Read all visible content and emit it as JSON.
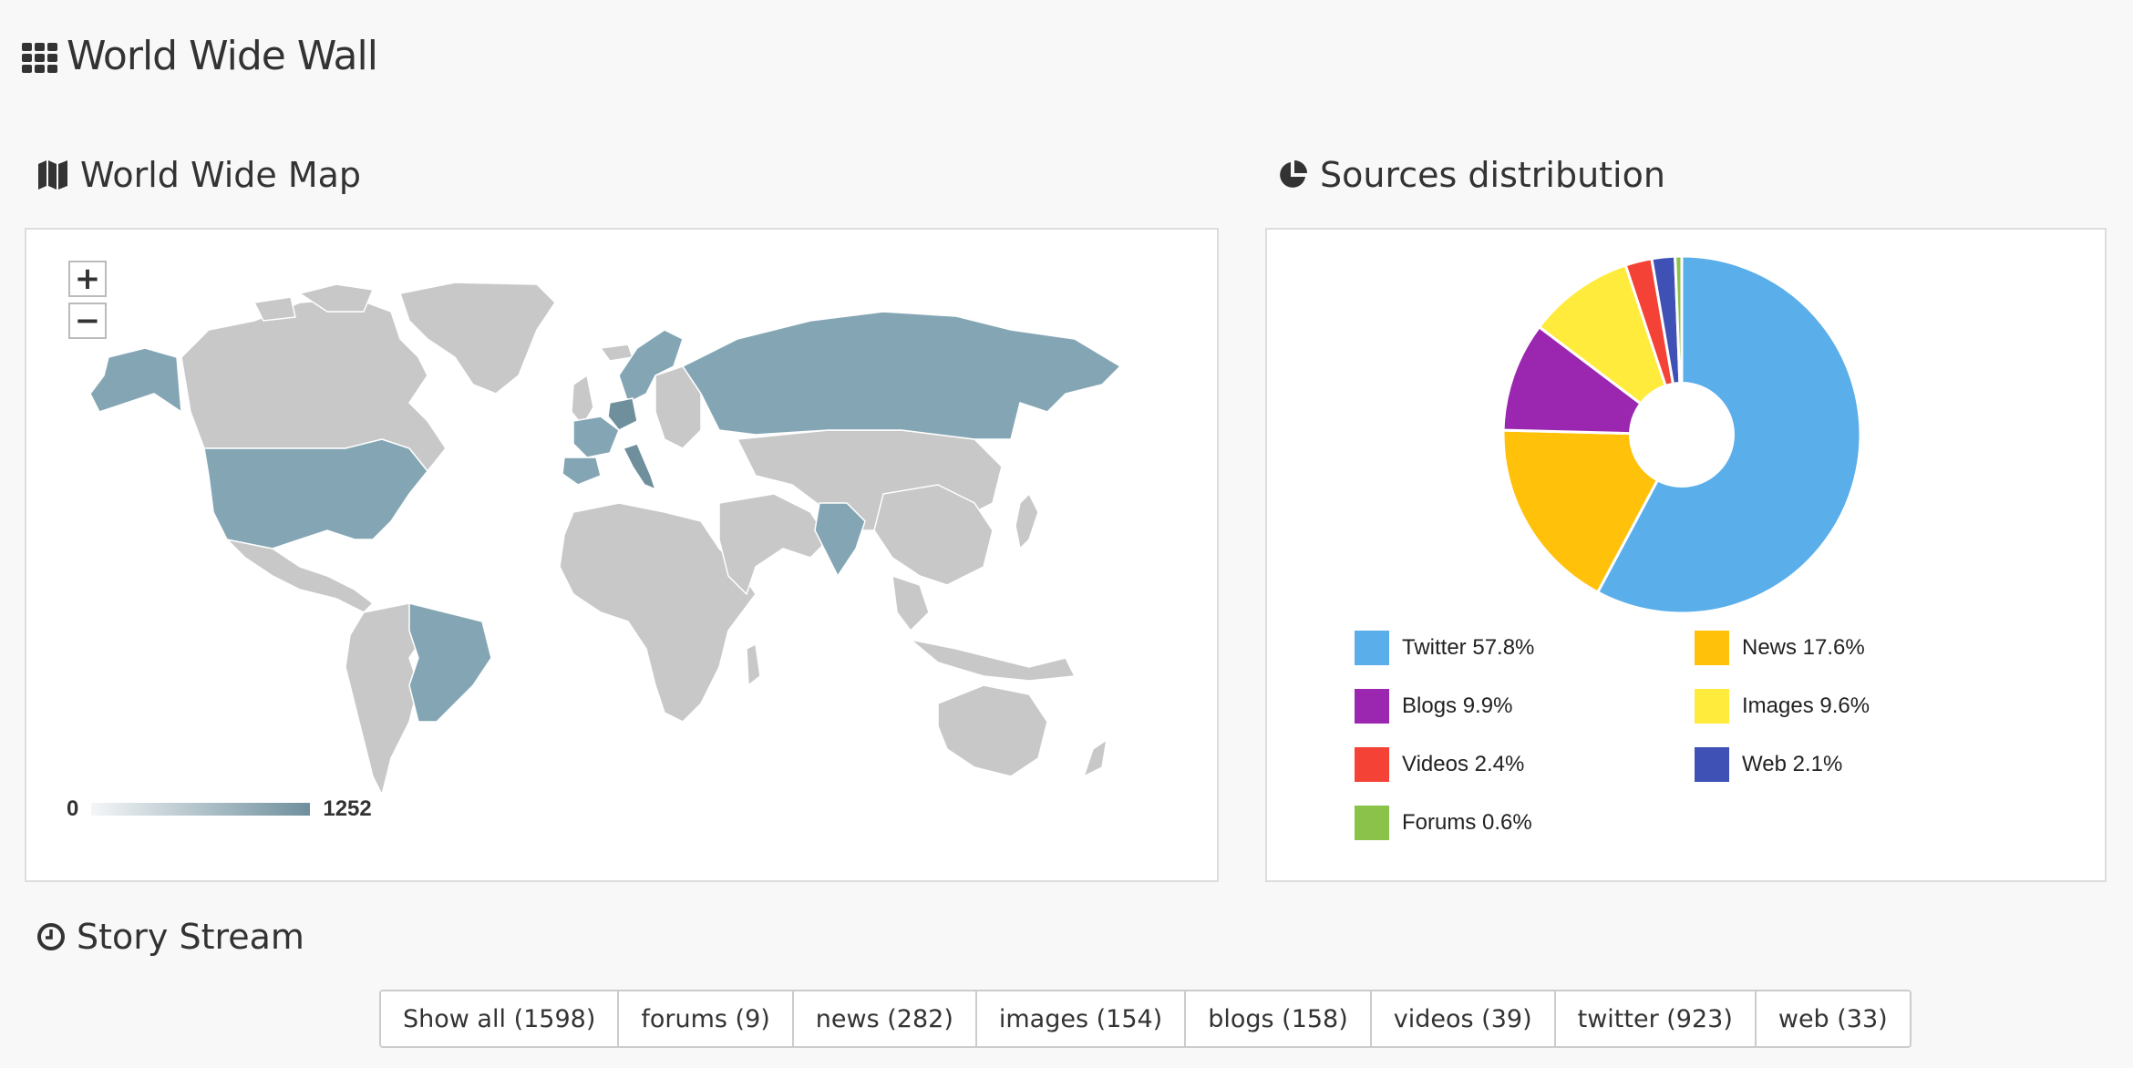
{
  "page": {
    "title": "World Wide Wall"
  },
  "map_section": {
    "heading": "World Wide Map",
    "zoom_in": "+",
    "zoom_out": "−",
    "scale_min": "0",
    "scale_max": "1252",
    "colors": {
      "land": "#c8c8c8",
      "highlight": "#84a6b4",
      "dark": "#6f8f9d"
    }
  },
  "sources_section": {
    "heading": "Sources distribution",
    "legend": [
      {
        "label": "Twitter 57.8%",
        "color": "#5aaeea"
      },
      {
        "label": "News 17.6%",
        "color": "#ffc10a"
      },
      {
        "label": "Blogs 9.9%",
        "color": "#9b27b0"
      },
      {
        "label": "Images 9.6%",
        "color": "#ffeb3b"
      },
      {
        "label": "Videos 2.4%",
        "color": "#f44336"
      },
      {
        "label": "Web 2.1%",
        "color": "#3f51b5"
      },
      {
        "label": "Forums 0.6%",
        "color": "#8bc34a"
      }
    ]
  },
  "chart_data": {
    "type": "pie",
    "categories": [
      "Twitter",
      "News",
      "Blogs",
      "Images",
      "Videos",
      "Web",
      "Forums"
    ],
    "values": [
      57.8,
      17.6,
      9.9,
      9.6,
      2.4,
      2.1,
      0.6
    ],
    "colors": [
      "#5aaeea",
      "#ffc10a",
      "#9b27b0",
      "#ffeb3b",
      "#f44336",
      "#3f51b5",
      "#8bc34a"
    ],
    "title": "Sources distribution",
    "legend": "bottom"
  },
  "story_stream": {
    "heading": "Story Stream",
    "filters": [
      "Show all (1598)",
      "forums (9)",
      "news (282)",
      "images (154)",
      "blogs (158)",
      "videos (39)",
      "twitter (923)",
      "web (33)"
    ]
  }
}
